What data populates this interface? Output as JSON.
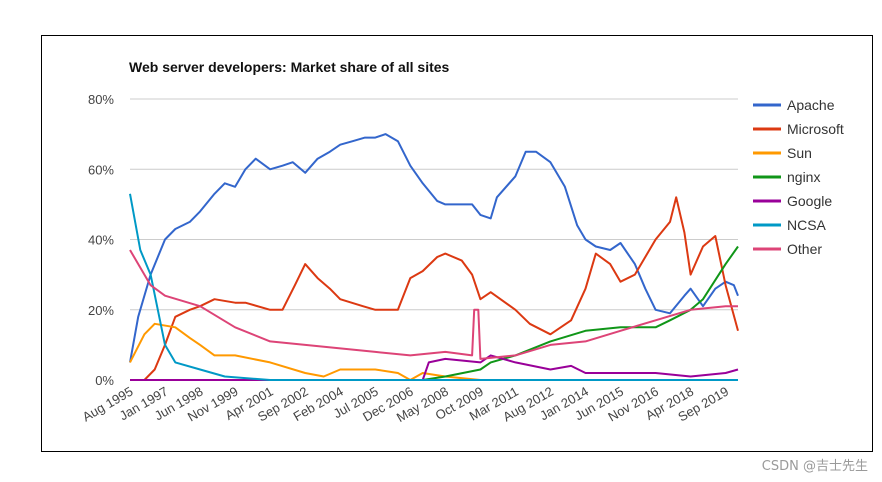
{
  "watermark": "CSDN @吉士先生",
  "chart_data": {
    "type": "line",
    "title": "Web server developers: Market share of all sites",
    "xlabel": "",
    "ylabel": "",
    "ylim": [
      0,
      80
    ],
    "yticks": [
      0,
      20,
      40,
      60,
      80
    ],
    "ytick_labels": [
      "0%",
      "20%",
      "40%",
      "60%",
      "80%"
    ],
    "xlim": [
      "1995-08",
      "2020-03"
    ],
    "xtick_labels": [
      "Aug 1995",
      "Jan 1997",
      "Jun 1998",
      "Nov 1999",
      "Apr 2001",
      "Sep 2002",
      "Feb 2004",
      "Jul 2005",
      "Dec 2006",
      "May 2008",
      "Oct 2009",
      "Mar 2011",
      "Aug 2012",
      "Jan 2014",
      "Jun 2015",
      "Nov 2016",
      "Apr 2018",
      "Sep 2019"
    ],
    "xtick_dates": [
      "1995-08",
      "1997-01",
      "1998-06",
      "1999-11",
      "2001-04",
      "2002-09",
      "2004-02",
      "2005-07",
      "2006-12",
      "2008-05",
      "2009-10",
      "2011-03",
      "2012-08",
      "2014-01",
      "2015-06",
      "2016-11",
      "2018-04",
      "2019-09"
    ],
    "grid": "horizontal",
    "legend_position": "right",
    "series": [
      {
        "name": "Apache",
        "color": "#3366cc",
        "points": [
          [
            "1995-08",
            5
          ],
          [
            "1995-12",
            18
          ],
          [
            "1996-06",
            30
          ],
          [
            "1997-01",
            40
          ],
          [
            "1997-06",
            43
          ],
          [
            "1998-01",
            45
          ],
          [
            "1998-06",
            48
          ],
          [
            "1999-01",
            53
          ],
          [
            "1999-06",
            56
          ],
          [
            "1999-11",
            55
          ],
          [
            "2000-04",
            60
          ],
          [
            "2000-09",
            63
          ],
          [
            "2001-04",
            60
          ],
          [
            "2001-10",
            61
          ],
          [
            "2002-03",
            62
          ],
          [
            "2002-09",
            59
          ],
          [
            "2003-03",
            63
          ],
          [
            "2003-09",
            65
          ],
          [
            "2004-02",
            67
          ],
          [
            "2004-08",
            68
          ],
          [
            "2005-02",
            69
          ],
          [
            "2005-07",
            69
          ],
          [
            "2005-12",
            70
          ],
          [
            "2006-06",
            68
          ],
          [
            "2006-12",
            61
          ],
          [
            "2007-06",
            56
          ],
          [
            "2008-01",
            51
          ],
          [
            "2008-05",
            50
          ],
          [
            "2008-12",
            50
          ],
          [
            "2009-06",
            50
          ],
          [
            "2009-10",
            47
          ],
          [
            "2010-03",
            46
          ],
          [
            "2010-06",
            52
          ],
          [
            "2011-03",
            58
          ],
          [
            "2011-08",
            65
          ],
          [
            "2012-01",
            65
          ],
          [
            "2012-08",
            62
          ],
          [
            "2013-03",
            55
          ],
          [
            "2013-09",
            44
          ],
          [
            "2014-01",
            40
          ],
          [
            "2014-06",
            38
          ],
          [
            "2015-01",
            37
          ],
          [
            "2015-06",
            39
          ],
          [
            "2016-01",
            33
          ],
          [
            "2016-06",
            26
          ],
          [
            "2016-11",
            20
          ],
          [
            "2017-06",
            19
          ],
          [
            "2018-01",
            24
          ],
          [
            "2018-04",
            26
          ],
          [
            "2018-10",
            21
          ],
          [
            "2019-04",
            26
          ],
          [
            "2019-09",
            28
          ],
          [
            "2020-01",
            27
          ],
          [
            "2020-03",
            24
          ]
        ]
      },
      {
        "name": "Microsoft",
        "color": "#dc3912",
        "points": [
          [
            "1995-08",
            0
          ],
          [
            "1996-03",
            0
          ],
          [
            "1996-08",
            3
          ],
          [
            "1997-01",
            10
          ],
          [
            "1997-06",
            18
          ],
          [
            "1998-01",
            20
          ],
          [
            "1998-06",
            21
          ],
          [
            "1999-01",
            23
          ],
          [
            "1999-11",
            22
          ],
          [
            "2000-04",
            22
          ],
          [
            "2001-04",
            20
          ],
          [
            "2001-10",
            20
          ],
          [
            "2002-04",
            27
          ],
          [
            "2002-09",
            33
          ],
          [
            "2003-03",
            29
          ],
          [
            "2003-09",
            26
          ],
          [
            "2004-02",
            23
          ],
          [
            "2005-01",
            21
          ],
          [
            "2005-07",
            20
          ],
          [
            "2006-06",
            20
          ],
          [
            "2006-12",
            29
          ],
          [
            "2007-06",
            31
          ],
          [
            "2008-01",
            35
          ],
          [
            "2008-05",
            36
          ],
          [
            "2009-01",
            34
          ],
          [
            "2009-06",
            30
          ],
          [
            "2009-10",
            23
          ],
          [
            "2010-03",
            25
          ],
          [
            "2011-03",
            20
          ],
          [
            "2011-10",
            16
          ],
          [
            "2012-08",
            13
          ],
          [
            "2013-06",
            17
          ],
          [
            "2014-01",
            26
          ],
          [
            "2014-06",
            36
          ],
          [
            "2015-01",
            33
          ],
          [
            "2015-06",
            28
          ],
          [
            "2016-01",
            30
          ],
          [
            "2016-11",
            40
          ],
          [
            "2017-06",
            45
          ],
          [
            "2017-09",
            52
          ],
          [
            "2018-01",
            42
          ],
          [
            "2018-04",
            30
          ],
          [
            "2018-10",
            38
          ],
          [
            "2019-04",
            41
          ],
          [
            "2019-09",
            27
          ],
          [
            "2020-03",
            14
          ]
        ]
      },
      {
        "name": "Sun",
        "color": "#ff9900",
        "points": [
          [
            "1995-08",
            5
          ],
          [
            "1996-03",
            13
          ],
          [
            "1996-08",
            16
          ],
          [
            "1997-06",
            15
          ],
          [
            "1998-01",
            12
          ],
          [
            "1998-06",
            10
          ],
          [
            "1999-01",
            7
          ],
          [
            "1999-11",
            7
          ],
          [
            "2001-04",
            5
          ],
          [
            "2002-09",
            2
          ],
          [
            "2003-06",
            1
          ],
          [
            "2004-02",
            3
          ],
          [
            "2005-07",
            3
          ],
          [
            "2006-06",
            2
          ],
          [
            "2006-12",
            0
          ],
          [
            "2007-06",
            2
          ],
          [
            "2008-05",
            1
          ],
          [
            "2009-10",
            0
          ],
          [
            "2011-03",
            0
          ]
        ]
      },
      {
        "name": "nginx",
        "color": "#109618",
        "points": [
          [
            "1995-08",
            0
          ],
          [
            "2007-06",
            0
          ],
          [
            "2008-05",
            1
          ],
          [
            "2009-10",
            3
          ],
          [
            "2010-03",
            5
          ],
          [
            "2011-03",
            7
          ],
          [
            "2012-08",
            11
          ],
          [
            "2014-01",
            14
          ],
          [
            "2015-06",
            15
          ],
          [
            "2016-11",
            15
          ],
          [
            "2017-06",
            17
          ],
          [
            "2018-04",
            20
          ],
          [
            "2018-10",
            23
          ],
          [
            "2019-09",
            33
          ],
          [
            "2020-03",
            38
          ]
        ]
      },
      {
        "name": "Google",
        "color": "#990099",
        "points": [
          [
            "1995-08",
            0
          ],
          [
            "2007-06",
            0
          ],
          [
            "2007-09",
            5
          ],
          [
            "2008-05",
            6
          ],
          [
            "2009-10",
            5
          ],
          [
            "2010-03",
            7
          ],
          [
            "2011-03",
            5
          ],
          [
            "2012-08",
            3
          ],
          [
            "2013-06",
            4
          ],
          [
            "2014-01",
            2
          ],
          [
            "2016-11",
            2
          ],
          [
            "2018-04",
            1
          ],
          [
            "2019-09",
            2
          ],
          [
            "2020-03",
            3
          ]
        ]
      },
      {
        "name": "NCSA",
        "color": "#0099c6",
        "points": [
          [
            "1995-08",
            53
          ],
          [
            "1996-01",
            37
          ],
          [
            "1996-06",
            30
          ],
          [
            "1997-01",
            10
          ],
          [
            "1997-06",
            5
          ],
          [
            "1998-06",
            3
          ],
          [
            "1999-06",
            1
          ],
          [
            "2001-04",
            0
          ],
          [
            "2020-03",
            0
          ]
        ]
      },
      {
        "name": "Other",
        "color": "#dd4477",
        "points": [
          [
            "1995-08",
            37
          ],
          [
            "1996-06",
            27
          ],
          [
            "1997-01",
            24
          ],
          [
            "1998-06",
            21
          ],
          [
            "1999-11",
            15
          ],
          [
            "2001-04",
            11
          ],
          [
            "2002-09",
            10
          ],
          [
            "2004-02",
            9
          ],
          [
            "2005-07",
            8
          ],
          [
            "2006-12",
            7
          ],
          [
            "2008-05",
            8
          ],
          [
            "2009-06",
            7
          ],
          [
            "2009-07",
            20
          ],
          [
            "2009-09",
            20
          ],
          [
            "2009-10",
            6
          ],
          [
            "2011-03",
            7
          ],
          [
            "2012-08",
            10
          ],
          [
            "2014-01",
            11
          ],
          [
            "2015-06",
            14
          ],
          [
            "2016-11",
            17
          ],
          [
            "2018-04",
            20
          ],
          [
            "2019-09",
            21
          ],
          [
            "2020-03",
            21
          ]
        ]
      }
    ]
  }
}
